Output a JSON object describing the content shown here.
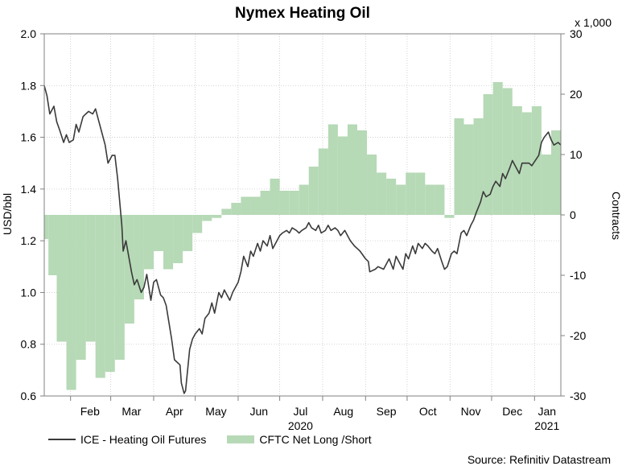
{
  "chart_data": {
    "type": "line",
    "title": "Nymex Heating Oil",
    "left_axis": {
      "label": "USD/bbl",
      "range": [
        0.6,
        2.0
      ],
      "ticks": [
        "0.6",
        "0.8",
        "1.0",
        "1.2",
        "1.4",
        "1.6",
        "1.8",
        "2.0"
      ]
    },
    "right_axis": {
      "label": "Contracts",
      "multiplier_label": "x 1,000",
      "range": [
        -30,
        30
      ],
      "ticks": [
        "-30",
        "-20",
        "-10",
        "0",
        "10",
        "20",
        "30"
      ]
    },
    "x_axis": {
      "month_labels": [
        "Feb",
        "Mar",
        "Apr",
        "May",
        "Jun",
        "Jul",
        "Aug",
        "Sep",
        "Oct",
        "Nov",
        "Dec",
        "Jan"
      ],
      "year_labels": [
        {
          "label": "2020",
          "under": "Jul"
        },
        {
          "label": "2021",
          "under": "Jan"
        }
      ],
      "start": "2020-01-13",
      "end": "2021-01-20"
    },
    "grid": true,
    "legend_position": "bottom-left",
    "series": [
      {
        "name": "ICE - Heating Oil Futures",
        "type": "line",
        "axis": "left",
        "color": "#3a3a3a",
        "points": [
          [
            "2020-01-13",
            1.8
          ],
          [
            "2020-01-15",
            1.76
          ],
          [
            "2020-01-17",
            1.69
          ],
          [
            "2020-01-20",
            1.72
          ],
          [
            "2020-01-22",
            1.66
          ],
          [
            "2020-01-24",
            1.63
          ],
          [
            "2020-01-27",
            1.58
          ],
          [
            "2020-01-29",
            1.61
          ],
          [
            "2020-01-31",
            1.58
          ],
          [
            "2020-02-03",
            1.59
          ],
          [
            "2020-02-05",
            1.65
          ],
          [
            "2020-02-07",
            1.62
          ],
          [
            "2020-02-10",
            1.68
          ],
          [
            "2020-02-12",
            1.69
          ],
          [
            "2020-02-14",
            1.7
          ],
          [
            "2020-02-17",
            1.69
          ],
          [
            "2020-02-19",
            1.71
          ],
          [
            "2020-02-21",
            1.67
          ],
          [
            "2020-02-24",
            1.61
          ],
          [
            "2020-02-26",
            1.57
          ],
          [
            "2020-02-28",
            1.5
          ],
          [
            "2020-03-02",
            1.53
          ],
          [
            "2020-03-04",
            1.53
          ],
          [
            "2020-03-06",
            1.44
          ],
          [
            "2020-03-09",
            1.26
          ],
          [
            "2020-03-10",
            1.16
          ],
          [
            "2020-03-12",
            1.2
          ],
          [
            "2020-03-16",
            1.08
          ],
          [
            "2020-03-18",
            1.03
          ],
          [
            "2020-03-20",
            1.05
          ],
          [
            "2020-03-23",
            1.0
          ],
          [
            "2020-03-25",
            1.02
          ],
          [
            "2020-03-27",
            1.07
          ],
          [
            "2020-03-30",
            0.97
          ],
          [
            "2020-04-01",
            1.04
          ],
          [
            "2020-04-03",
            1.05
          ],
          [
            "2020-04-06",
            0.99
          ],
          [
            "2020-04-08",
            0.98
          ],
          [
            "2020-04-10",
            0.95
          ],
          [
            "2020-04-14",
            0.82
          ],
          [
            "2020-04-16",
            0.74
          ],
          [
            "2020-04-20",
            0.72
          ],
          [
            "2020-04-21",
            0.65
          ],
          [
            "2020-04-23",
            0.61
          ],
          [
            "2020-04-24",
            0.62
          ],
          [
            "2020-04-27",
            0.78
          ],
          [
            "2020-04-29",
            0.82
          ],
          [
            "2020-05-01",
            0.84
          ],
          [
            "2020-05-04",
            0.86
          ],
          [
            "2020-05-06",
            0.84
          ],
          [
            "2020-05-08",
            0.9
          ],
          [
            "2020-05-11",
            0.92
          ],
          [
            "2020-05-13",
            0.96
          ],
          [
            "2020-05-15",
            0.92
          ],
          [
            "2020-05-18",
            1.0
          ],
          [
            "2020-05-20",
            0.98
          ],
          [
            "2020-05-22",
            1.01
          ],
          [
            "2020-05-26",
            0.97
          ],
          [
            "2020-05-28",
            1.0
          ],
          [
            "2020-06-01",
            1.04
          ],
          [
            "2020-06-03",
            1.08
          ],
          [
            "2020-06-05",
            1.14
          ],
          [
            "2020-06-08",
            1.1
          ],
          [
            "2020-06-10",
            1.16
          ],
          [
            "2020-06-12",
            1.14
          ],
          [
            "2020-06-15",
            1.19
          ],
          [
            "2020-06-17",
            1.16
          ],
          [
            "2020-06-19",
            1.2
          ],
          [
            "2020-06-22",
            1.18
          ],
          [
            "2020-06-24",
            1.22
          ],
          [
            "2020-06-26",
            1.17
          ],
          [
            "2020-06-29",
            1.2
          ],
          [
            "2020-07-01",
            1.22
          ],
          [
            "2020-07-03",
            1.23
          ],
          [
            "2020-07-06",
            1.24
          ],
          [
            "2020-07-08",
            1.23
          ],
          [
            "2020-07-10",
            1.25
          ],
          [
            "2020-07-13",
            1.24
          ],
          [
            "2020-07-15",
            1.23
          ],
          [
            "2020-07-17",
            1.24
          ],
          [
            "2020-07-20",
            1.25
          ],
          [
            "2020-07-22",
            1.27
          ],
          [
            "2020-07-24",
            1.25
          ],
          [
            "2020-07-27",
            1.24
          ],
          [
            "2020-07-29",
            1.26
          ],
          [
            "2020-07-31",
            1.23
          ],
          [
            "2020-08-03",
            1.24
          ],
          [
            "2020-08-05",
            1.26
          ],
          [
            "2020-08-07",
            1.24
          ],
          [
            "2020-08-10",
            1.25
          ],
          [
            "2020-08-12",
            1.24
          ],
          [
            "2020-08-14",
            1.22
          ],
          [
            "2020-08-17",
            1.24
          ],
          [
            "2020-08-19",
            1.22
          ],
          [
            "2020-08-21",
            1.2
          ],
          [
            "2020-08-24",
            1.18
          ],
          [
            "2020-08-26",
            1.17
          ],
          [
            "2020-08-28",
            1.16
          ],
          [
            "2020-09-01",
            1.13
          ],
          [
            "2020-09-03",
            1.12
          ],
          [
            "2020-09-04",
            1.08
          ],
          [
            "2020-09-08",
            1.09
          ],
          [
            "2020-09-10",
            1.1
          ],
          [
            "2020-09-14",
            1.09
          ],
          [
            "2020-09-16",
            1.11
          ],
          [
            "2020-09-18",
            1.13
          ],
          [
            "2020-09-21",
            1.09
          ],
          [
            "2020-09-23",
            1.14
          ],
          [
            "2020-09-25",
            1.12
          ],
          [
            "2020-09-28",
            1.09
          ],
          [
            "2020-09-30",
            1.15
          ],
          [
            "2020-10-02",
            1.13
          ],
          [
            "2020-10-05",
            1.18
          ],
          [
            "2020-10-07",
            1.15
          ],
          [
            "2020-10-09",
            1.19
          ],
          [
            "2020-10-12",
            1.17
          ],
          [
            "2020-10-14",
            1.19
          ],
          [
            "2020-10-16",
            1.18
          ],
          [
            "2020-10-19",
            1.16
          ],
          [
            "2020-10-21",
            1.15
          ],
          [
            "2020-10-23",
            1.17
          ],
          [
            "2020-10-26",
            1.12
          ],
          [
            "2020-10-28",
            1.09
          ],
          [
            "2020-10-30",
            1.1
          ],
          [
            "2020-11-02",
            1.15
          ],
          [
            "2020-11-04",
            1.16
          ],
          [
            "2020-11-06",
            1.15
          ],
          [
            "2020-11-09",
            1.23
          ],
          [
            "2020-11-11",
            1.24
          ],
          [
            "2020-11-13",
            1.22
          ],
          [
            "2020-11-16",
            1.26
          ],
          [
            "2020-11-18",
            1.28
          ],
          [
            "2020-11-20",
            1.31
          ],
          [
            "2020-11-23",
            1.35
          ],
          [
            "2020-11-25",
            1.39
          ],
          [
            "2020-11-27",
            1.37
          ],
          [
            "2020-11-30",
            1.38
          ],
          [
            "2020-12-02",
            1.41
          ],
          [
            "2020-12-04",
            1.43
          ],
          [
            "2020-12-07",
            1.41
          ],
          [
            "2020-12-09",
            1.46
          ],
          [
            "2020-12-11",
            1.44
          ],
          [
            "2020-12-14",
            1.48
          ],
          [
            "2020-12-16",
            1.51
          ],
          [
            "2020-12-18",
            1.49
          ],
          [
            "2020-12-21",
            1.46
          ],
          [
            "2020-12-23",
            1.5
          ],
          [
            "2020-12-28",
            1.5
          ],
          [
            "2020-12-30",
            1.49
          ],
          [
            "2021-01-04",
            1.53
          ],
          [
            "2021-01-06",
            1.58
          ],
          [
            "2021-01-08",
            1.6
          ],
          [
            "2021-01-11",
            1.62
          ],
          [
            "2021-01-13",
            1.59
          ],
          [
            "2021-01-15",
            1.57
          ],
          [
            "2021-01-18",
            1.58
          ],
          [
            "2021-01-20",
            1.57
          ]
        ]
      },
      {
        "name": "CFTC Net Long /Short",
        "type": "area-step",
        "axis": "right",
        "color": "#b6d9b6",
        "points": [
          [
            "2020-01-13",
            -4
          ],
          [
            "2020-01-16",
            -10
          ],
          [
            "2020-01-22",
            -21
          ],
          [
            "2020-01-29",
            -29
          ],
          [
            "2020-02-05",
            -24
          ],
          [
            "2020-02-12",
            -21
          ],
          [
            "2020-02-19",
            -27
          ],
          [
            "2020-02-26",
            -26
          ],
          [
            "2020-03-04",
            -24
          ],
          [
            "2020-03-11",
            -18
          ],
          [
            "2020-03-18",
            -14
          ],
          [
            "2020-03-25",
            -9
          ],
          [
            "2020-04-01",
            -6
          ],
          [
            "2020-04-08",
            -9
          ],
          [
            "2020-04-15",
            -8
          ],
          [
            "2020-04-22",
            -6
          ],
          [
            "2020-04-29",
            -3
          ],
          [
            "2020-05-06",
            -1
          ],
          [
            "2020-05-13",
            -0.5
          ],
          [
            "2020-05-20",
            1
          ],
          [
            "2020-05-27",
            2
          ],
          [
            "2020-06-03",
            3
          ],
          [
            "2020-06-10",
            3
          ],
          [
            "2020-06-17",
            4
          ],
          [
            "2020-06-24",
            6
          ],
          [
            "2020-07-01",
            4
          ],
          [
            "2020-07-08",
            4
          ],
          [
            "2020-07-15",
            5
          ],
          [
            "2020-07-22",
            8
          ],
          [
            "2020-07-29",
            11
          ],
          [
            "2020-08-05",
            15
          ],
          [
            "2020-08-12",
            13
          ],
          [
            "2020-08-19",
            15
          ],
          [
            "2020-08-26",
            14
          ],
          [
            "2020-09-02",
            10
          ],
          [
            "2020-09-09",
            7
          ],
          [
            "2020-09-16",
            6
          ],
          [
            "2020-09-23",
            5
          ],
          [
            "2020-09-30",
            7
          ],
          [
            "2020-10-07",
            7
          ],
          [
            "2020-10-14",
            5
          ],
          [
            "2020-10-21",
            5
          ],
          [
            "2020-10-28",
            -0.5
          ],
          [
            "2020-11-04",
            16
          ],
          [
            "2020-11-11",
            15
          ],
          [
            "2020-11-18",
            16
          ],
          [
            "2020-11-25",
            20
          ],
          [
            "2020-12-02",
            22
          ],
          [
            "2020-12-09",
            21
          ],
          [
            "2020-12-16",
            18
          ],
          [
            "2020-12-23",
            17
          ],
          [
            "2020-12-30",
            18
          ],
          [
            "2021-01-06",
            10
          ],
          [
            "2021-01-13",
            14
          ],
          [
            "2021-01-20",
            14
          ]
        ]
      }
    ],
    "source": "Source: Refinitiv Datastream"
  }
}
